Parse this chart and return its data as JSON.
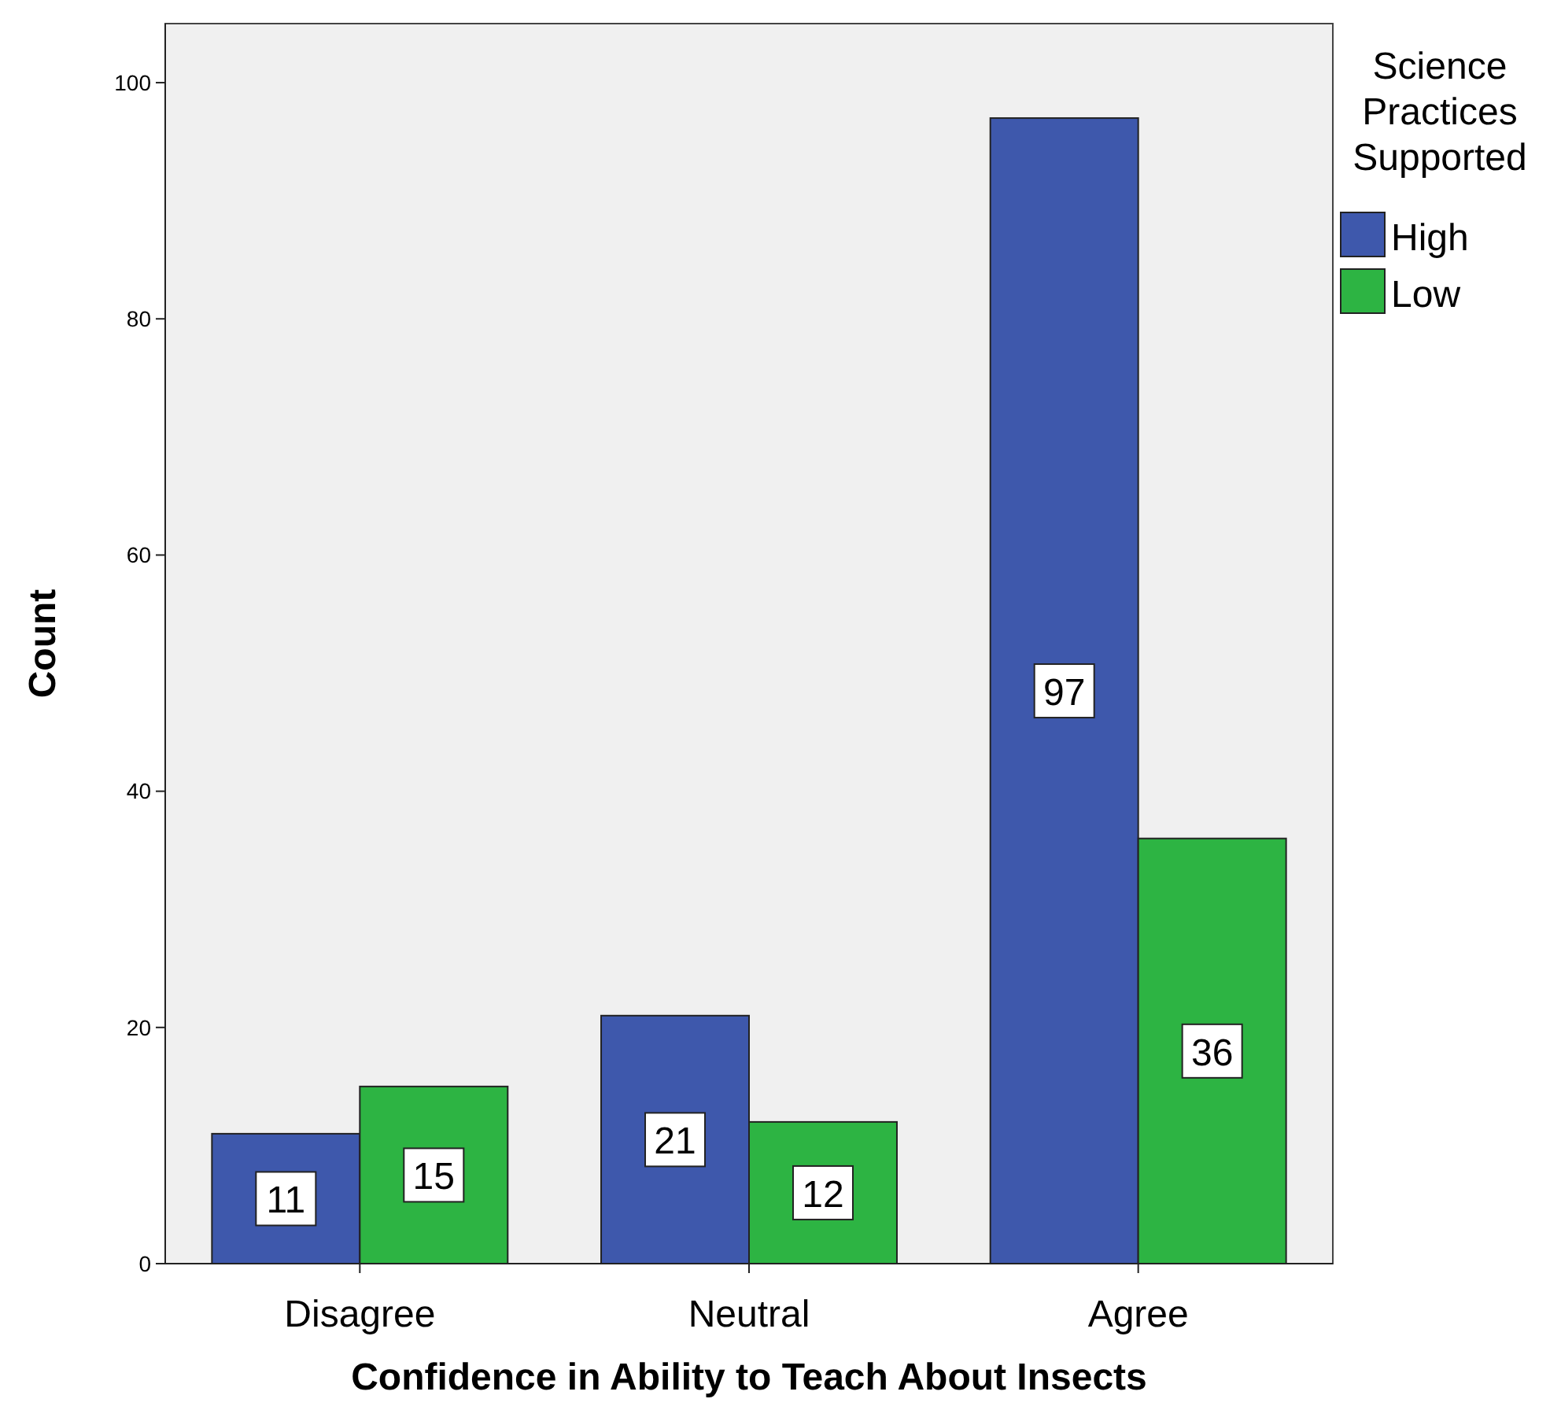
{
  "chart_data": {
    "type": "bar",
    "xlabel": "Confidence in Ability to Teach About Insects",
    "ylabel": "Count",
    "legend_title": "Science Practices Supported",
    "categories": [
      "Disagree",
      "Neutral",
      "Agree"
    ],
    "series": [
      {
        "name": "High",
        "color": "#3e58ac",
        "values": [
          11,
          21,
          97
        ]
      },
      {
        "name": "Low",
        "color": "#2db443",
        "values": [
          15,
          12,
          36
        ]
      }
    ],
    "ylim": [
      0,
      105
    ],
    "yticks": [
      0,
      20,
      40,
      60,
      80,
      100
    ],
    "grid": false,
    "legend": "right",
    "data_labels": true
  }
}
